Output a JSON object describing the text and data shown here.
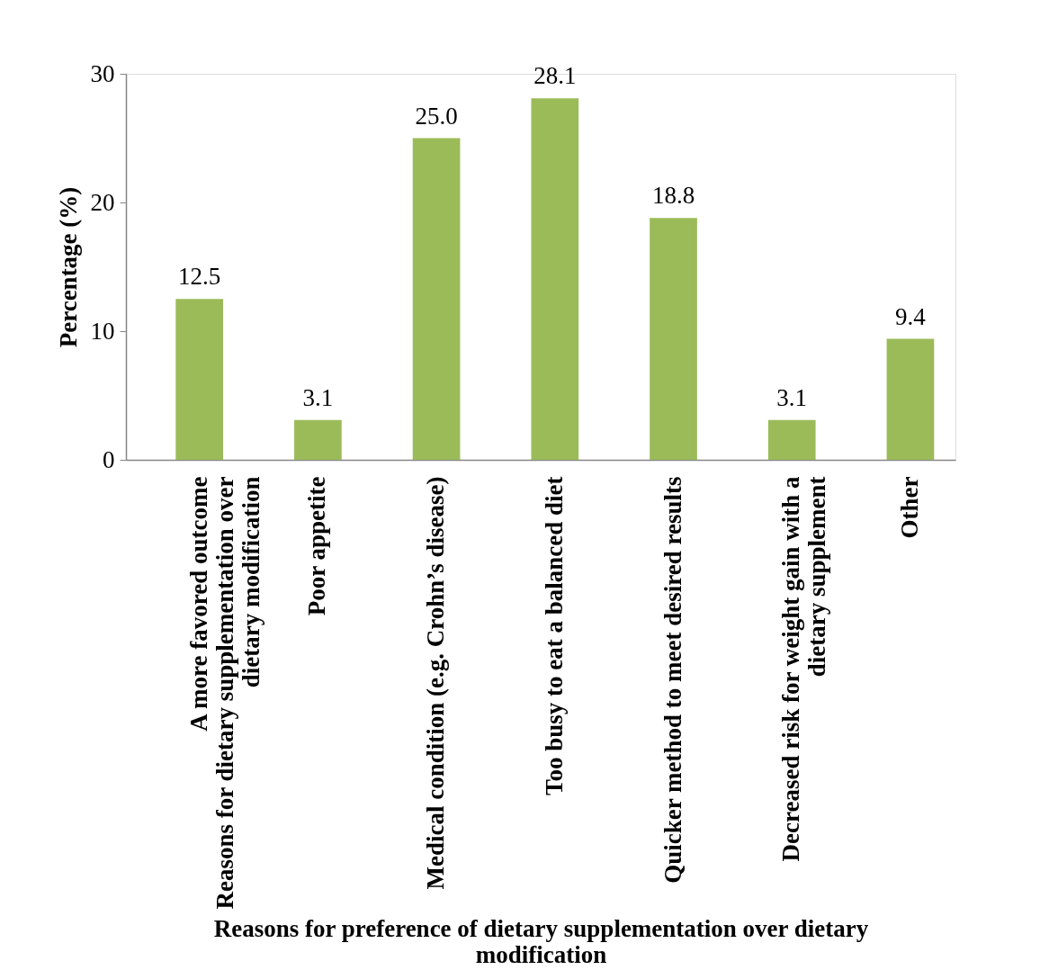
{
  "chart_data": {
    "type": "bar",
    "categories": [
      "A more favored outcome\nReasons for dietary supplementation over\ndietary modification",
      "Poor appetite",
      "Medical condition (e.g. Crohn’s disease)",
      "Too busy to eat a balanced diet",
      "Quicker method to meet desired results",
      "Decreased risk for weight gain with a\ndietary supplement",
      "Other"
    ],
    "values": [
      12.5,
      3.1,
      25.0,
      28.1,
      18.8,
      3.1,
      9.4
    ],
    "value_labels": [
      "12.5",
      "3.1",
      "25.0",
      "28.1",
      "18.8",
      "3.1",
      "9.4"
    ],
    "color": "#9bbb59",
    "xlabel": "Reasons for preference of dietary supplementation over dietary\nmodification",
    "ylabel": "Percentage (%)",
    "ylim": [
      0,
      30
    ],
    "yticks": [
      0,
      10,
      20,
      30
    ]
  }
}
